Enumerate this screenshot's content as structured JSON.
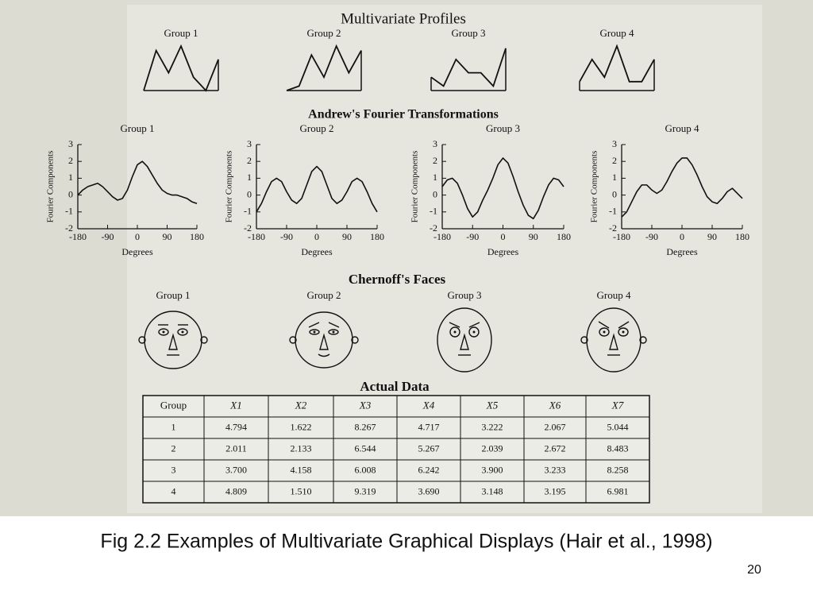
{
  "figure": {
    "profiles": {
      "title": "Multivariate Profiles",
      "ylim": [
        0,
        1
      ],
      "groups": [
        {
          "name": "Group 1",
          "values": [
            0,
            0.9,
            0.4,
            1.0,
            0.3,
            0,
            0.7
          ]
        },
        {
          "name": "Group 2",
          "values": [
            0,
            0.1,
            0.8,
            0.3,
            1.0,
            0.4,
            0.9
          ]
        },
        {
          "name": "Group 3",
          "values": [
            0.3,
            0.1,
            0.7,
            0.4,
            0.4,
            0.1,
            0.95
          ]
        },
        {
          "name": "Group 4",
          "values": [
            0.2,
            0.7,
            0.3,
            1.0,
            0.2,
            0.2,
            0.7
          ]
        }
      ]
    },
    "fourier": {
      "title": "Andrew's Fourier Transformations",
      "ylabel": "Fourier Components",
      "xlabel": "Degrees",
      "xlim": [
        -180,
        180
      ],
      "ylim": [
        -2,
        3
      ],
      "xticks": [
        -180,
        -90,
        0,
        90,
        180
      ],
      "yticks": [
        -2,
        -1,
        0,
        1,
        2,
        3
      ],
      "x": [
        -180,
        -165,
        -150,
        -135,
        -120,
        -105,
        -90,
        -75,
        -60,
        -45,
        -30,
        -15,
        0,
        15,
        30,
        45,
        60,
        75,
        90,
        105,
        120,
        135,
        150,
        165,
        180
      ],
      "groups": [
        {
          "name": "Group 1",
          "values": [
            0.0,
            0.3,
            0.5,
            0.6,
            0.7,
            0.5,
            0.2,
            -0.1,
            -0.3,
            -0.2,
            0.3,
            1.1,
            1.8,
            2.0,
            1.7,
            1.2,
            0.7,
            0.3,
            0.1,
            0.0,
            0.0,
            -0.1,
            -0.2,
            -0.4,
            -0.5
          ]
        },
        {
          "name": "Group 2",
          "values": [
            -1.0,
            -0.5,
            0.2,
            0.8,
            1.0,
            0.8,
            0.2,
            -0.3,
            -0.5,
            -0.2,
            0.6,
            1.4,
            1.7,
            1.4,
            0.6,
            -0.2,
            -0.5,
            -0.3,
            0.2,
            0.8,
            1.0,
            0.8,
            0.2,
            -0.5,
            -1.0
          ]
        },
        {
          "name": "Group 3",
          "values": [
            0.5,
            0.9,
            1.0,
            0.7,
            0.0,
            -0.8,
            -1.3,
            -1.0,
            -0.3,
            0.3,
            1.0,
            1.8,
            2.2,
            1.9,
            1.1,
            0.2,
            -0.6,
            -1.2,
            -1.4,
            -0.9,
            -0.1,
            0.6,
            1.0,
            0.9,
            0.5
          ]
        },
        {
          "name": "Group 4",
          "values": [
            -1.3,
            -1.0,
            -0.4,
            0.2,
            0.6,
            0.6,
            0.3,
            0.1,
            0.3,
            0.8,
            1.4,
            1.9,
            2.2,
            2.2,
            1.8,
            1.2,
            0.5,
            -0.1,
            -0.4,
            -0.5,
            -0.2,
            0.2,
            0.4,
            0.1,
            -0.2
          ]
        }
      ]
    },
    "faces": {
      "title": "Chernoff's Faces",
      "groups": [
        "Group 1",
        "Group 2",
        "Group 3",
        "Group 4"
      ]
    },
    "table": {
      "title": "Actual Data",
      "header": [
        "Group",
        "X1",
        "X2",
        "X3",
        "X4",
        "X5",
        "X6",
        "X7"
      ],
      "rows": [
        [
          "1",
          "4.794",
          "1.622",
          "8.267",
          "4.717",
          "3.222",
          "2.067",
          "5.044"
        ],
        [
          "2",
          "2.011",
          "2.133",
          "6.544",
          "5.267",
          "2.039",
          "2.672",
          "8.483"
        ],
        [
          "3",
          "3.700",
          "4.158",
          "6.008",
          "6.242",
          "3.900",
          "3.233",
          "8.258"
        ],
        [
          "4",
          "4.809",
          "1.510",
          "9.319",
          "3.690",
          "3.148",
          "3.195",
          "6.981"
        ]
      ]
    }
  },
  "caption": "Fig 2.2  Examples of Multivariate Graphical Displays (Hair et al., 1998)",
  "page_number": "20"
}
